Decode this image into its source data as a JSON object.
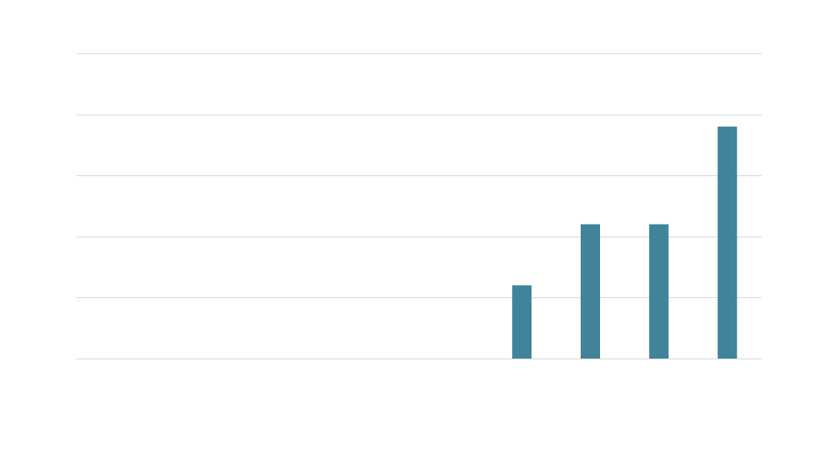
{
  "chart_data": {
    "type": "bar",
    "categories": [
      "",
      "",
      "",
      "",
      "",
      "",
      "",
      "",
      "",
      ""
    ],
    "values": [
      0,
      0,
      0,
      0,
      0,
      0,
      0.6,
      1.1,
      1.1,
      1.9
    ],
    "ylim": [
      0,
      2.5
    ],
    "grid": true,
    "bar_color": "#41849a",
    "grid_color": "#dcdcdc",
    "background": "#ffffff"
  }
}
